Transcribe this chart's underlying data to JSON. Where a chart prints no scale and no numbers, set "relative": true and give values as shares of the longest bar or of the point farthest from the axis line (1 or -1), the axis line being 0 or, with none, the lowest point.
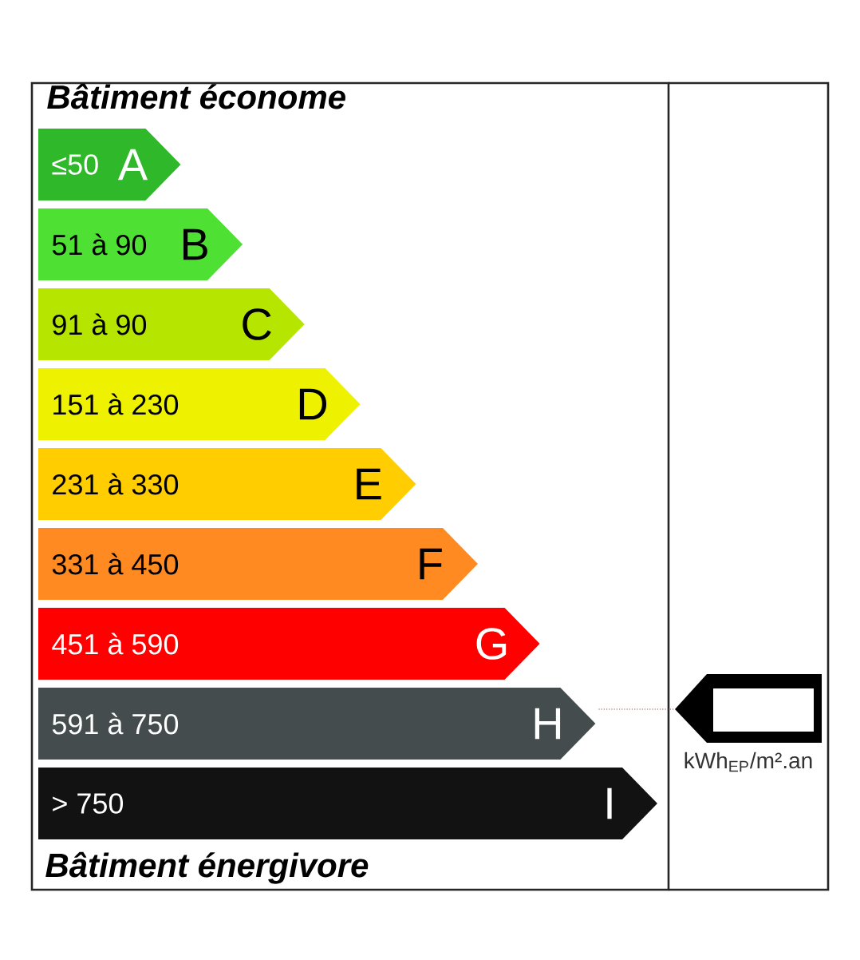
{
  "chart_data": {
    "type": "bar",
    "orientation": "horizontal",
    "relative": true,
    "title": "Bâtiment économe",
    "categories": [
      "A",
      "B",
      "C",
      "D",
      "E",
      "F",
      "G",
      "H",
      "I"
    ],
    "values": [
      0.23,
      0.33,
      0.43,
      0.52,
      0.61,
      0.71,
      0.81,
      0.9,
      1
    ],
    "colors": [
      "#2fb82a",
      "#4ee033",
      "#b6e600",
      "#eef200",
      "#ffcd00",
      "#ff8a22",
      "#ff0000",
      "#454c4d",
      "#121212"
    ],
    "ref_lines": [
      {
        "axis": "y",
        "value": "H",
        "color": "#9a4a4a",
        "line_style": "dotted"
      }
    ],
    "annotations": [
      "≤50",
      "51 à 90",
      "91 à 90",
      "151 à 230",
      "231 à 330",
      "331 à 450",
      "451 à 590",
      "591 à 750",
      "> 750",
      "Bâtiment énergivore",
      "kWh$_{EP}$/m².an"
    ]
  }
}
